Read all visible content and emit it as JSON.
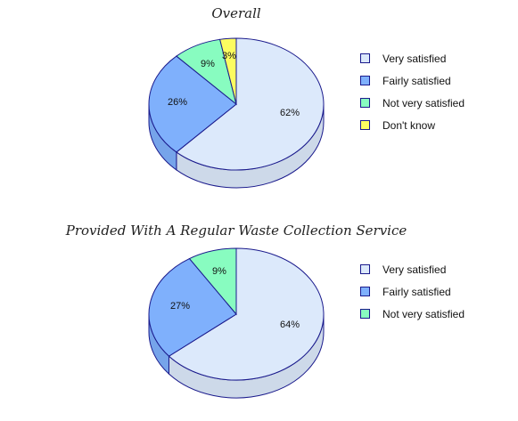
{
  "chart_data": [
    {
      "type": "pie",
      "title": "Overall",
      "categories": [
        "Very satisfied",
        "Fairly satisfied",
        "Not very satisfied",
        "Don't know"
      ],
      "values": [
        62,
        26,
        9,
        3
      ],
      "labels": [
        "62%",
        "26%",
        "9%",
        "3%"
      ],
      "colors": [
        "#dce9fb",
        "#7fb0fc",
        "#88fcc0",
        "#fcfc60"
      ],
      "legend_position": "right"
    },
    {
      "type": "pie",
      "title": "Provided With A Regular Waste Collection Service",
      "categories": [
        "Very satisfied",
        "Fairly satisfied",
        "Not very satisfied"
      ],
      "values": [
        64,
        27,
        9
      ],
      "labels": [
        "64%",
        "27%",
        "9%"
      ],
      "colors": [
        "#dce9fb",
        "#7fb0fc",
        "#88fcc0"
      ],
      "legend_position": "right"
    }
  ],
  "colors": {
    "outline": "#1a1a8c"
  }
}
